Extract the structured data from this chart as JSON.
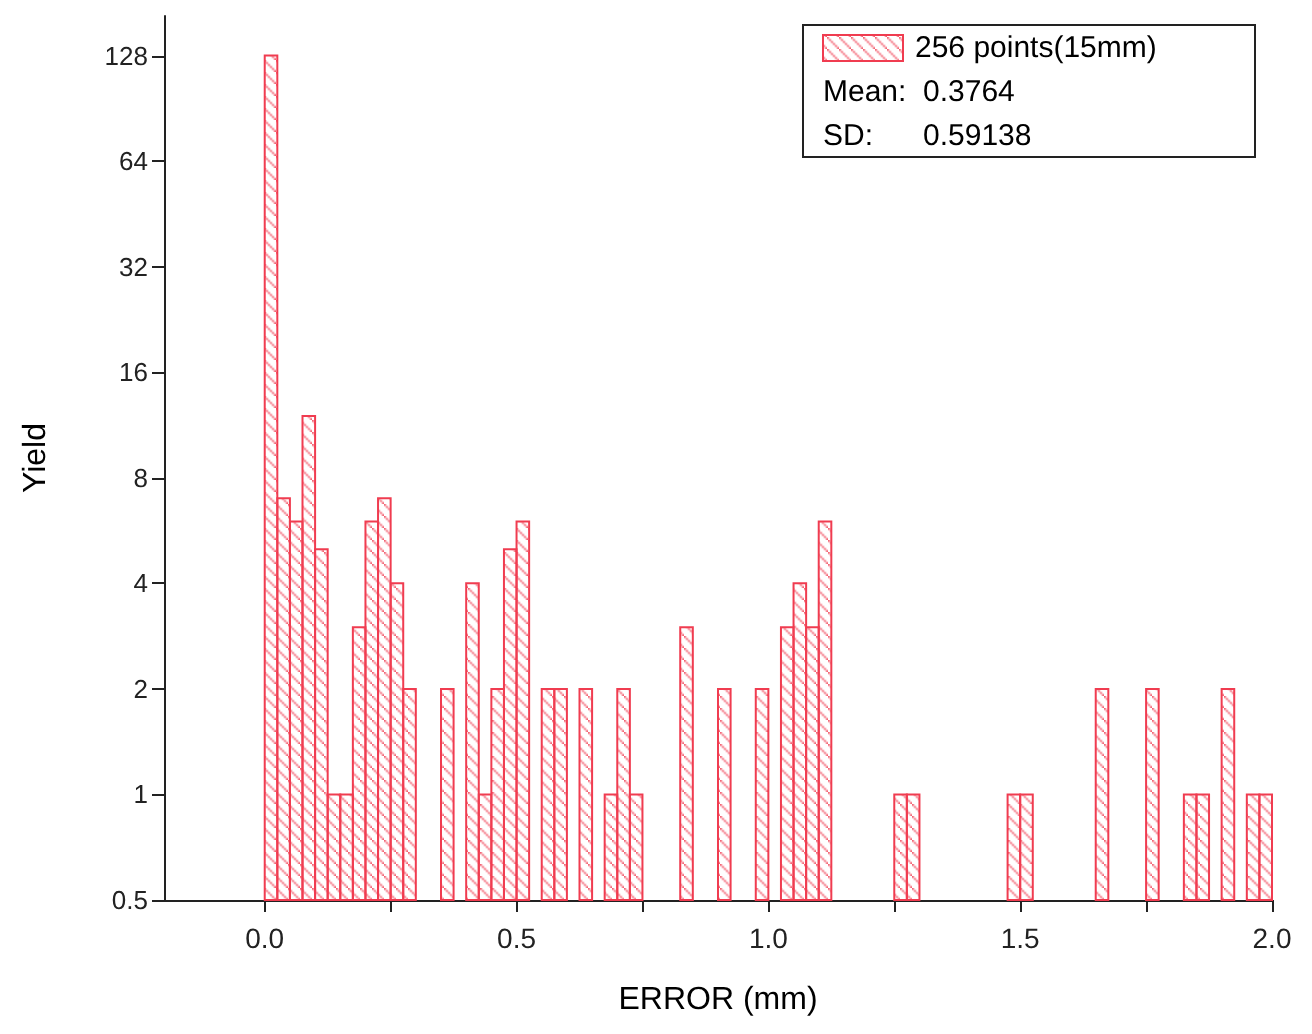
{
  "chart_data": {
    "type": "histogram",
    "xlabel": "ERROR (mm)",
    "ylabel": "Yield",
    "bins": [
      0,
      0.025,
      0.05,
      0.075,
      0.1,
      0.125,
      0.15,
      0.175,
      0.2,
      0.225,
      0.25,
      0.275,
      0.3,
      0.325,
      0.35,
      0.375,
      0.4,
      0.425,
      0.45,
      0.475,
      0.5,
      0.525,
      0.55,
      0.575,
      0.6,
      0.625,
      0.65,
      0.675,
      0.7,
      0.725,
      0.75,
      0.775,
      0.8,
      0.825,
      0.85,
      0.875,
      0.9,
      0.925,
      0.95,
      0.975,
      1.0,
      1.025,
      1.05,
      1.075,
      1.1,
      1.125,
      1.15,
      1.175,
      1.2,
      1.225,
      1.25,
      1.275,
      1.3,
      1.325,
      1.35,
      1.375,
      1.4,
      1.425,
      1.45,
      1.475,
      1.5,
      1.525,
      1.55,
      1.575,
      1.6,
      1.625,
      1.65,
      1.675,
      1.7,
      1.725,
      1.75,
      1.775,
      1.8,
      1.825,
      1.85,
      1.875,
      1.9,
      1.925,
      1.95,
      1.975,
      2.0
    ],
    "series": [
      {
        "name": "256 points(15mm)",
        "color": "#f03c50",
        "values": [
          128,
          7,
          6,
          12,
          5,
          1,
          1,
          3,
          6,
          7,
          4,
          2,
          null,
          null,
          2,
          null,
          4,
          1,
          2,
          5,
          6,
          null,
          2,
          2,
          null,
          2,
          null,
          1,
          2,
          1,
          null,
          null,
          null,
          3,
          null,
          null,
          2,
          null,
          null,
          2,
          null,
          3,
          4,
          3,
          6,
          null,
          null,
          null,
          null,
          null,
          1,
          1,
          null,
          null,
          null,
          null,
          null,
          null,
          null,
          1,
          1,
          null,
          null,
          null,
          null,
          null,
          2,
          null,
          null,
          null,
          2,
          null,
          null,
          1,
          1,
          null,
          2,
          null,
          1,
          1
        ]
      }
    ],
    "annotations": [
      "Mean:  0.3764",
      "SD:      0.59138"
    ],
    "log": "y",
    "xlim": [
      -0.2,
      2.0
    ],
    "xticks": [
      {
        "value": 0,
        "label": "0.0"
      },
      {
        "value": 0.25,
        "label": null
      },
      {
        "value": 0.5,
        "label": "0.5"
      },
      {
        "value": 0.75,
        "label": null
      },
      {
        "value": 1.0,
        "label": "1.0"
      },
      {
        "value": 1.25,
        "label": null
      },
      {
        "value": 1.5,
        "label": "1.5"
      },
      {
        "value": 1.75,
        "label": null
      },
      {
        "value": 2.0,
        "label": "2.0"
      }
    ],
    "ylim": [
      0.5,
      166
    ],
    "yticks": [
      0.5,
      1,
      2,
      4,
      8,
      16,
      32,
      64,
      128
    ],
    "grid": false,
    "legend": "top right"
  }
}
